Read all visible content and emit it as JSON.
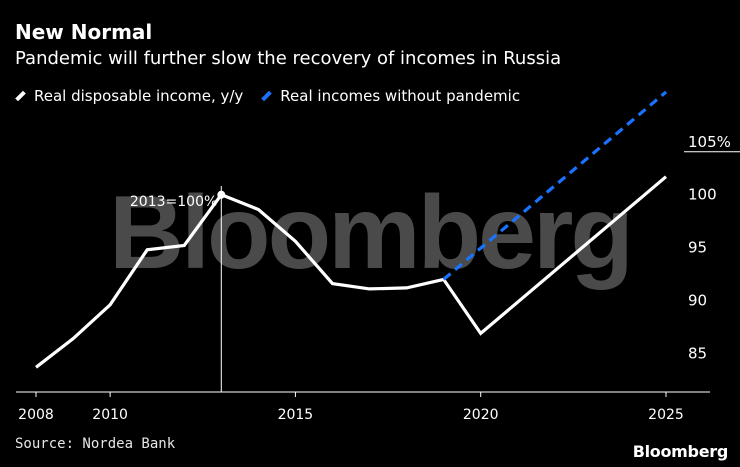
{
  "header": {
    "title": "New Normal",
    "subtitle": "Pandemic will further slow the recovery of incomes in Russia"
  },
  "footer": {
    "source": "Source: Nordea Bank",
    "brand": "Bloomberg"
  },
  "watermark": "Bloomberg",
  "colors": {
    "background": "#000000",
    "series_real": "#ffffff",
    "series_counterfactual": "#1a73ff",
    "axis": "#ffffff",
    "watermark": "#4a4a4a"
  },
  "chart_data": {
    "type": "line",
    "xlim": [
      2008,
      2025
    ],
    "ylim": [
      82.5,
      108
    ],
    "x_ticks": [
      2008,
      2010,
      2015,
      2020,
      2025
    ],
    "y_ticks": [
      85,
      90,
      95,
      100,
      105
    ],
    "y_tick_labels": [
      "85",
      "90",
      "95",
      "100",
      "105%"
    ],
    "grid": false,
    "legend_position": "top-left",
    "series": [
      {
        "name": "Real disposable income, y/y",
        "color": "#ffffff",
        "style": "solid",
        "x": [
          2008,
          2009,
          2010,
          2011,
          2012,
          2013,
          2014,
          2015,
          2016,
          2017,
          2018,
          2019,
          2020,
          2025
        ],
        "y": [
          83.7,
          86.4,
          89.6,
          94.8,
          95.2,
          100.0,
          98.6,
          95.6,
          91.6,
          91.1,
          91.2,
          92.0,
          86.9,
          101.7
        ]
      },
      {
        "name": "Real incomes without pandemic",
        "color": "#1a73ff",
        "style": "dashed",
        "x": [
          2019,
          2025
        ],
        "y": [
          92.0,
          109.7
        ]
      }
    ],
    "annotations": [
      {
        "text": "2013=100%",
        "x": 2013,
        "y": 100.0,
        "type": "vertical-reference-line"
      }
    ]
  }
}
